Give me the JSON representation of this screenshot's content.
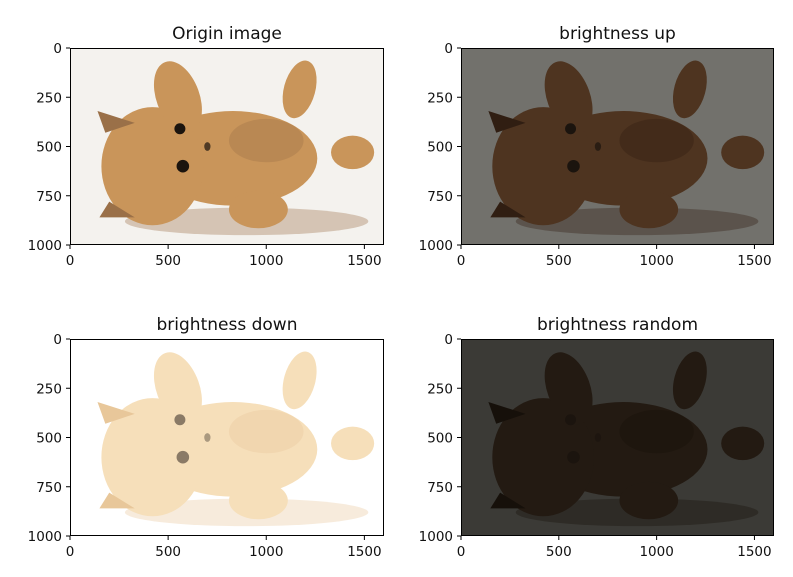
{
  "figure": {
    "panels": [
      {
        "title": "Origin image",
        "variant": "original",
        "x_ticks": [
          "0",
          "500",
          "1000",
          "1500"
        ],
        "y_ticks": [
          "0",
          "250",
          "500",
          "750",
          "1000"
        ],
        "background_color": "#f4f2ee",
        "fur_color": "#c9955a",
        "shadow_color": "#9a7048"
      },
      {
        "title": "brightness up",
        "variant": "darker",
        "x_ticks": [
          "0",
          "500",
          "1000",
          "1500"
        ],
        "y_ticks": [
          "0",
          "250",
          "500",
          "750",
          "1000"
        ],
        "background_color": "#72716c",
        "fur_color": "#4e3420",
        "shadow_color": "#301e12"
      },
      {
        "title": "brightness down",
        "variant": "washed-out",
        "x_ticks": [
          "0",
          "500",
          "1000",
          "1500"
        ],
        "y_ticks": [
          "0",
          "250",
          "500",
          "750",
          "1000"
        ],
        "background_color": "#ffffff",
        "fur_color": "#f6dfba",
        "shadow_color": "#e8c79a"
      },
      {
        "title": "brightness random",
        "variant": "very-dark",
        "x_ticks": [
          "0",
          "500",
          "1000",
          "1500"
        ],
        "y_ticks": [
          "0",
          "250",
          "500",
          "750",
          "1000"
        ],
        "background_color": "#3b3a36",
        "fur_color": "#231a12",
        "shadow_color": "#16100a"
      }
    ]
  }
}
